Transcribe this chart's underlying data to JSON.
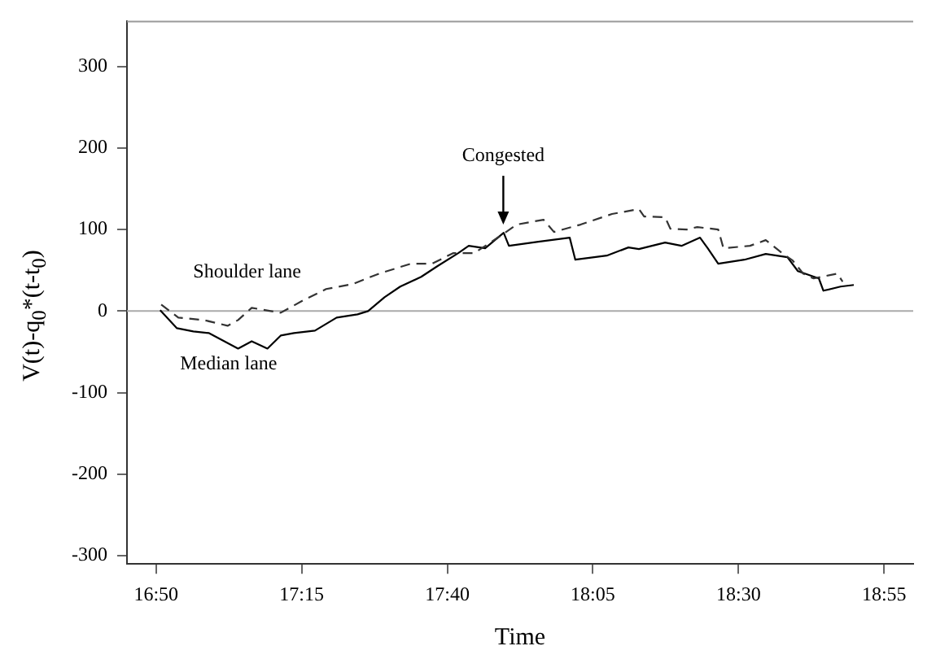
{
  "chart_data": {
    "type": "line",
    "xlabel": "Time",
    "ylabel": "V(t)-q$_{0}$*(t-t$_{0}$)",
    "xlim": [
      16.75,
      19.0
    ],
    "xticks": [
      {
        "value": 16.8333,
        "label": "16:50"
      },
      {
        "value": 17.25,
        "label": "17:15"
      },
      {
        "value": 17.6667,
        "label": "17:40"
      },
      {
        "value": 18.0833,
        "label": "18:05"
      },
      {
        "value": 18.5,
        "label": "18:30"
      },
      {
        "value": 18.9167,
        "label": "18:55"
      }
    ],
    "ylim": [
      -310,
      355
    ],
    "yticks": [
      -300,
      -200,
      -100,
      0,
      100,
      200,
      300
    ],
    "grid": false,
    "legend": false,
    "marker": "none",
    "series": [
      {
        "name": "Shoulder lane",
        "color": "#333333",
        "line_style": "dashed",
        "x": [
          16.848,
          16.897,
          16.97,
          17.038,
          17.068,
          17.107,
          17.19,
          17.258,
          17.32,
          17.395,
          17.472,
          17.562,
          17.623,
          17.683,
          17.743,
          17.79,
          17.835,
          17.865,
          17.942,
          17.972,
          18.048,
          18.138,
          18.215,
          18.23,
          18.29,
          18.305,
          18.352,
          18.382,
          18.442,
          18.457,
          18.533,
          18.578,
          18.625,
          18.655,
          18.685,
          18.715,
          18.783,
          18.798
        ],
        "values": [
          8,
          -8,
          -11,
          -18,
          -11,
          4,
          -2,
          14,
          27,
          33,
          46,
          58,
          58,
          71,
          71,
          84,
          97,
          106,
          112,
          97,
          106,
          119,
          125,
          116,
          115,
          101,
          100,
          103,
          100,
          77,
          80,
          87,
          71,
          62,
          46,
          40,
          46,
          36
        ]
      },
      {
        "name": "Median lane",
        "color": "#000000",
        "line_style": "solid",
        "x": [
          16.845,
          16.893,
          16.94,
          16.985,
          17.068,
          17.107,
          17.152,
          17.19,
          17.228,
          17.288,
          17.35,
          17.41,
          17.44,
          17.487,
          17.532,
          17.592,
          17.638,
          17.698,
          17.728,
          17.775,
          17.828,
          17.843,
          17.927,
          18.017,
          18.033,
          18.123,
          18.185,
          18.215,
          18.29,
          18.337,
          18.39,
          18.412,
          18.442,
          18.517,
          18.578,
          18.64,
          18.67,
          18.73,
          18.743,
          18.792,
          18.83
        ],
        "values": [
          1,
          -21,
          -25,
          -27,
          -46,
          -37,
          -46,
          -30,
          -27,
          -24,
          -8,
          -4,
          0,
          17,
          30,
          42,
          55,
          71,
          80,
          77,
          96,
          80,
          85,
          90,
          63,
          68,
          78,
          76,
          84,
          80,
          90,
          77,
          58,
          63,
          70,
          66,
          49,
          40,
          25,
          30,
          32
        ]
      }
    ],
    "ref_lines": [
      {
        "axis": "y",
        "value": 0,
        "color": "#aaaaaa"
      }
    ],
    "annotations": [
      {
        "text": "Congested",
        "x": 17.827,
        "y": 102
      }
    ]
  }
}
